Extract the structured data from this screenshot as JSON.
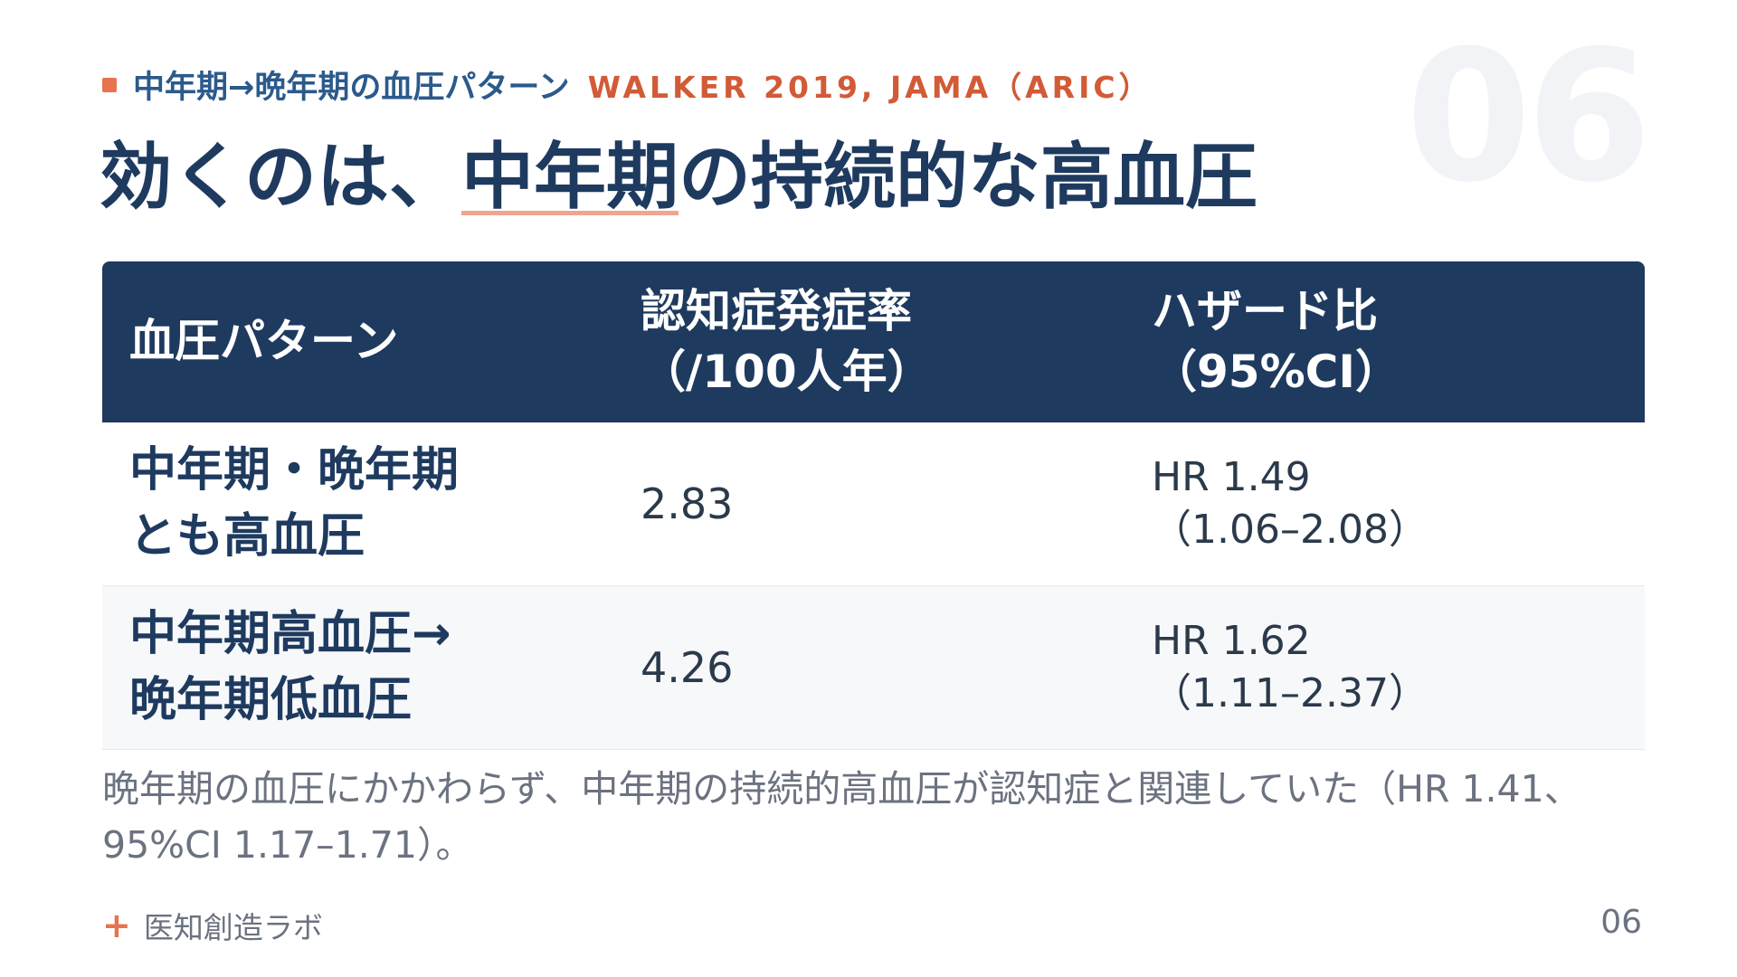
{
  "header": {
    "topic": "中年期→晩年期の血圧パターン",
    "source": "WALKER 2019, JAMA（ARIC）",
    "slide_number_bg": "06"
  },
  "title": {
    "prefix": "効くのは、",
    "highlight": "中年期",
    "suffix": "の持続的な高血圧"
  },
  "table": {
    "headers": {
      "pattern": "血圧パターン",
      "rate_line1": "認知症発症率",
      "rate_line2": "（/100人年）",
      "hr_line1": "ハザード比",
      "hr_line2": "（95%CI）"
    },
    "rows": [
      {
        "pattern_line1": "中年期・晩年期",
        "pattern_line2": "とも高血圧",
        "rate": "2.83",
        "hr": "HR 1.49",
        "ci": "（1.06–2.08）"
      },
      {
        "pattern_line1": "中年期高血圧→",
        "pattern_line2": "晩年期低血圧",
        "rate": "4.26",
        "hr": "HR 1.62",
        "ci": "（1.11–2.37）"
      }
    ]
  },
  "note": "晩年期の血圧にかかわらず、中年期の持続的高血圧が認知症と関連していた（HR 1.41、95%CI 1.17–1.71）。",
  "footer": {
    "brand": "医知創造ラボ",
    "page": "06"
  },
  "colors": {
    "navy": "#1e3a5f",
    "accent": "#e8734f",
    "source": "#d25b37"
  },
  "icons": {
    "kicker": "square-bullet-icon",
    "brand": "plus-icon"
  }
}
